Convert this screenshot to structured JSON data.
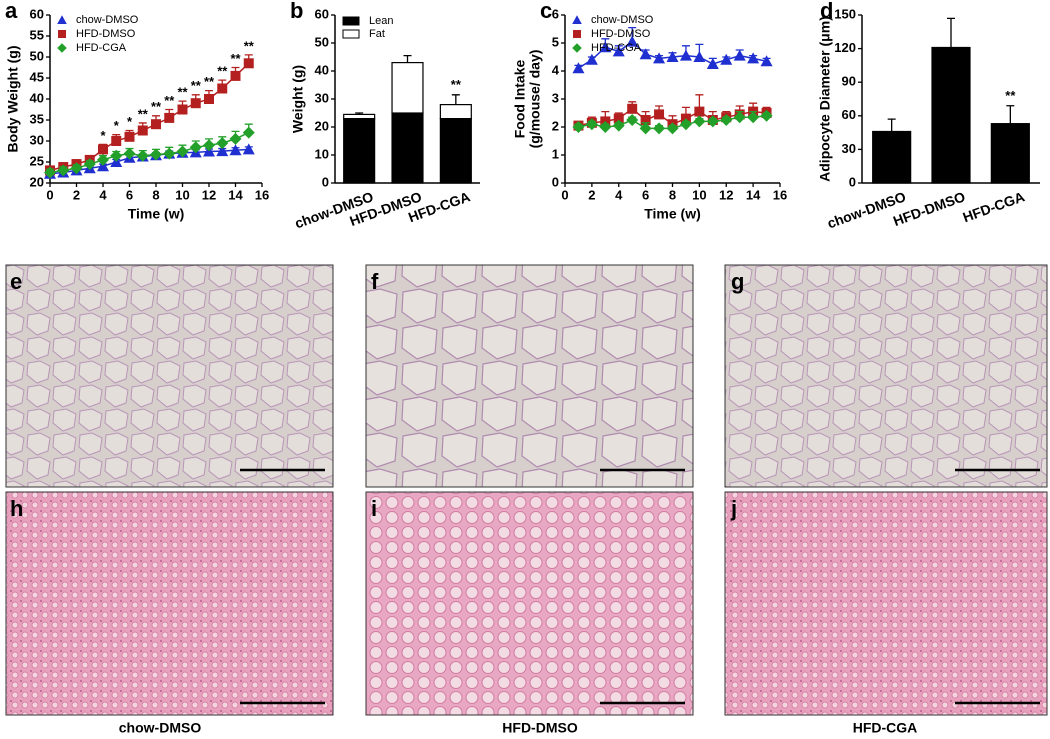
{
  "chart_data": [
    {
      "type": "line",
      "panel": "a",
      "ylabel": "Body Weight (g)",
      "xlabel": "Time (w)",
      "x": [
        0,
        1,
        2,
        3,
        4,
        5,
        6,
        7,
        8,
        9,
        10,
        11,
        12,
        13,
        14,
        15
      ],
      "xlim": [
        0,
        16
      ],
      "xticks": [
        0,
        2,
        4,
        6,
        8,
        10,
        12,
        14,
        16
      ],
      "ylim": [
        20,
        60
      ],
      "yticks": [
        20,
        25,
        30,
        35,
        40,
        45,
        50,
        55,
        60
      ],
      "series": [
        {
          "name": "chow-DMSO",
          "color": "#1f2fd0",
          "marker": "triangle",
          "values": [
            22.2,
            22.5,
            23,
            23.5,
            24,
            25,
            26,
            26.3,
            26.6,
            27,
            27.2,
            27.3,
            27.5,
            27.6,
            27.8,
            28
          ],
          "errors": [
            0.5,
            0.5,
            0.5,
            0.5,
            0.5,
            0.6,
            0.6,
            0.6,
            0.6,
            0.6,
            0.6,
            0.6,
            0.6,
            0.6,
            0.6,
            0.6
          ]
        },
        {
          "name": "HFD-DMSO",
          "color": "#b3201f",
          "marker": "square",
          "values": [
            23,
            23.8,
            24.5,
            25.5,
            28,
            30,
            31,
            32.5,
            34,
            35.5,
            37.5,
            39,
            40,
            42.5,
            45.5,
            48.5
          ],
          "errors": [
            0.8,
            0.8,
            1,
            1,
            1.2,
            1.5,
            1.5,
            1.8,
            2,
            2,
            2,
            2,
            2,
            2,
            2,
            2
          ]
        },
        {
          "name": "HFD-CGA",
          "color": "#22a02a",
          "marker": "diamond",
          "values": [
            22.5,
            23,
            23.5,
            24.5,
            25.5,
            26.5,
            27,
            26.5,
            26.8,
            27,
            27.5,
            28.5,
            29,
            29.5,
            30.5,
            32
          ],
          "errors": [
            0.8,
            0.8,
            0.8,
            0.8,
            1,
            1,
            1.2,
            1.2,
            1.2,
            1.5,
            1.5,
            1.5,
            1.5,
            1.5,
            1.8,
            2
          ]
        }
      ],
      "significance": [
        null,
        null,
        null,
        null,
        "*",
        "*",
        "*",
        "**",
        "**",
        "**",
        "**",
        "**",
        "**",
        "**",
        "**",
        "**"
      ]
    },
    {
      "type": "bar",
      "panel": "b",
      "ylabel": "Weight (g)",
      "categories": [
        "chow-DMSO",
        "HFD-DMSO",
        "HFD-CGA"
      ],
      "ylim": [
        0,
        60
      ],
      "yticks": [
        0,
        10,
        20,
        30,
        40,
        50,
        60
      ],
      "series": [
        {
          "name": "Lean",
          "color": "#000000",
          "values": [
            23,
            25,
            23
          ],
          "errors": [
            0.8,
            1,
            2
          ]
        },
        {
          "name": "Fat",
          "color": "#ffffff",
          "values": [
            1.5,
            18,
            5
          ],
          "errors": [
            0.5,
            2.5,
            3.5
          ]
        }
      ],
      "significance": [
        null,
        null,
        "**"
      ]
    },
    {
      "type": "line",
      "panel": "c",
      "ylabel": [
        "Food Intake",
        "(g/mouse/ day)"
      ],
      "xlabel": "Time (w)",
      "x": [
        1,
        2,
        3,
        4,
        5,
        6,
        7,
        8,
        9,
        10,
        11,
        12,
        13,
        14,
        15
      ],
      "xlim": [
        0,
        16
      ],
      "xticks": [
        0,
        2,
        4,
        6,
        8,
        10,
        12,
        14,
        16
      ],
      "ylim": [
        0,
        6
      ],
      "yticks": [
        0,
        1,
        2,
        3,
        4,
        5,
        6
      ],
      "series": [
        {
          "name": "chow-DMSO",
          "color": "#1f2fd0",
          "marker": "triangle",
          "values": [
            4.1,
            4.4,
            4.85,
            4.7,
            5.05,
            4.6,
            4.45,
            4.5,
            4.55,
            4.5,
            4.25,
            4.4,
            4.55,
            4.45,
            4.35
          ],
          "errors": [
            0.1,
            0.1,
            0.3,
            0.2,
            0.5,
            0.15,
            0.1,
            0.15,
            0.35,
            0.45,
            0.2,
            0.1,
            0.2,
            0.1,
            0.1
          ]
        },
        {
          "name": "HFD-DMSO",
          "color": "#b3201f",
          "marker": "square",
          "values": [
            2.05,
            2.15,
            2.2,
            2.3,
            2.65,
            2.25,
            2.45,
            2.1,
            2.3,
            2.55,
            2.25,
            2.35,
            2.45,
            2.55,
            2.5
          ],
          "errors": [
            0.1,
            0.2,
            0.35,
            0.2,
            0.25,
            0.3,
            0.3,
            0.3,
            0.4,
            0.6,
            0.3,
            0.2,
            0.3,
            0.3,
            0.2
          ]
        },
        {
          "name": "HFD-CGA",
          "color": "#22a02a",
          "marker": "diamond",
          "values": [
            2.0,
            2.1,
            2.0,
            2.05,
            2.25,
            1.95,
            1.95,
            1.95,
            2.1,
            2.2,
            2.2,
            2.25,
            2.35,
            2.35,
            2.4
          ],
          "errors": [
            0.1,
            0.1,
            0.1,
            0.1,
            0.1,
            0.2,
            0.1,
            0.1,
            0.1,
            0.1,
            0.1,
            0.1,
            0.2,
            0.2,
            0.1
          ]
        }
      ]
    },
    {
      "type": "bar",
      "panel": "d",
      "ylabel": "Adipocyte Diameter (μm)",
      "categories": [
        "chow-DMSO",
        "HFD-DMSO",
        "HFD-CGA"
      ],
      "ylim": [
        0,
        150
      ],
      "yticks": [
        0,
        30,
        60,
        90,
        120,
        150
      ],
      "color": "#000000",
      "values": [
        46,
        121,
        53
      ],
      "errors": [
        11,
        26,
        16
      ],
      "significance": [
        null,
        null,
        "**"
      ]
    }
  ],
  "histology": {
    "panels": [
      "e",
      "f",
      "g",
      "h",
      "i",
      "j"
    ],
    "labels": [
      "chow-DMSO",
      "HFD-DMSO",
      "HFD-CGA"
    ]
  }
}
